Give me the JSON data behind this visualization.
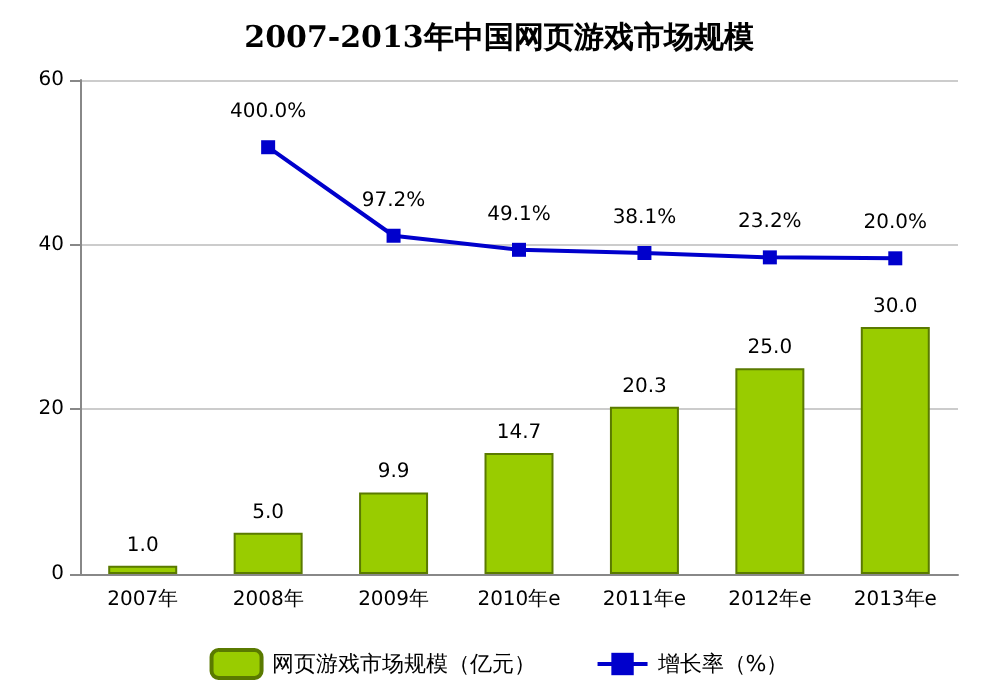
{
  "chart_data": {
    "type": "bar",
    "title": "2007-2013年中国网页游戏市场规模",
    "categories": [
      "2007年",
      "2008年",
      "2009年",
      "2010年e",
      "2011年e",
      "2012年e",
      "2013年e"
    ],
    "series": [
      {
        "name": "网页游戏市场规模（亿元）",
        "color": "#99cc00",
        "values": [
          1.0,
          5.0,
          9.9,
          14.7,
          20.3,
          25.0,
          30.0
        ],
        "value_labels": [
          "1.0",
          "5.0",
          "9.9",
          "14.7",
          "20.3",
          "25.0",
          "30.0"
        ]
      },
      {
        "name": "增长率（%）",
        "type": "line",
        "axis": "y2",
        "color": "#0000cc",
        "marker": "square",
        "values": [
          null,
          400.0,
          97.2,
          49.1,
          38.1,
          23.2,
          20.0
        ],
        "value_labels": [
          null,
          "400.0%",
          "97.2%",
          "49.1%",
          "38.1%",
          "23.2%",
          "20.0%"
        ]
      }
    ],
    "ylim": [
      0,
      60
    ],
    "yticks": [
      0,
      20,
      40,
      60
    ],
    "y2lim": [
      -1060,
      630
    ],
    "grid": "y",
    "legend": "bottom"
  }
}
